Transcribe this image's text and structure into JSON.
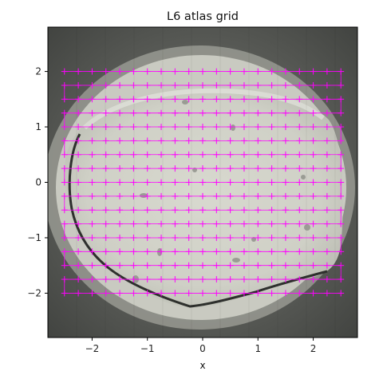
{
  "chart_data": {
    "type": "scatter",
    "title": "L6 atlas grid",
    "xlabel": "x",
    "ylabel": "",
    "xlim": [
      -2.8,
      2.8
    ],
    "ylim": [
      -2.8,
      2.8
    ],
    "xticks": [
      -2,
      -1,
      0,
      1,
      2
    ],
    "yticks": [
      -2,
      -1,
      0,
      1,
      2
    ],
    "xtick_labels": [
      "−2",
      "−1",
      "0",
      "1",
      "2"
    ],
    "ytick_labels": [
      "−2",
      "−1",
      "0",
      "1",
      "2"
    ],
    "grid": false,
    "legend": "none",
    "background": "stitched grayscale atlas image of a sample grid",
    "colors": {
      "marker": "#ff00ff",
      "path": "#ff00ff"
    },
    "series": [
      {
        "marker": "+",
        "grid_x_start": -2.5,
        "grid_x_end": 2.5,
        "grid_x_step": 0.25,
        "grid_y_start": -2.0,
        "grid_y_end": 2.0,
        "grid_y_step": 0.25
      }
    ]
  }
}
